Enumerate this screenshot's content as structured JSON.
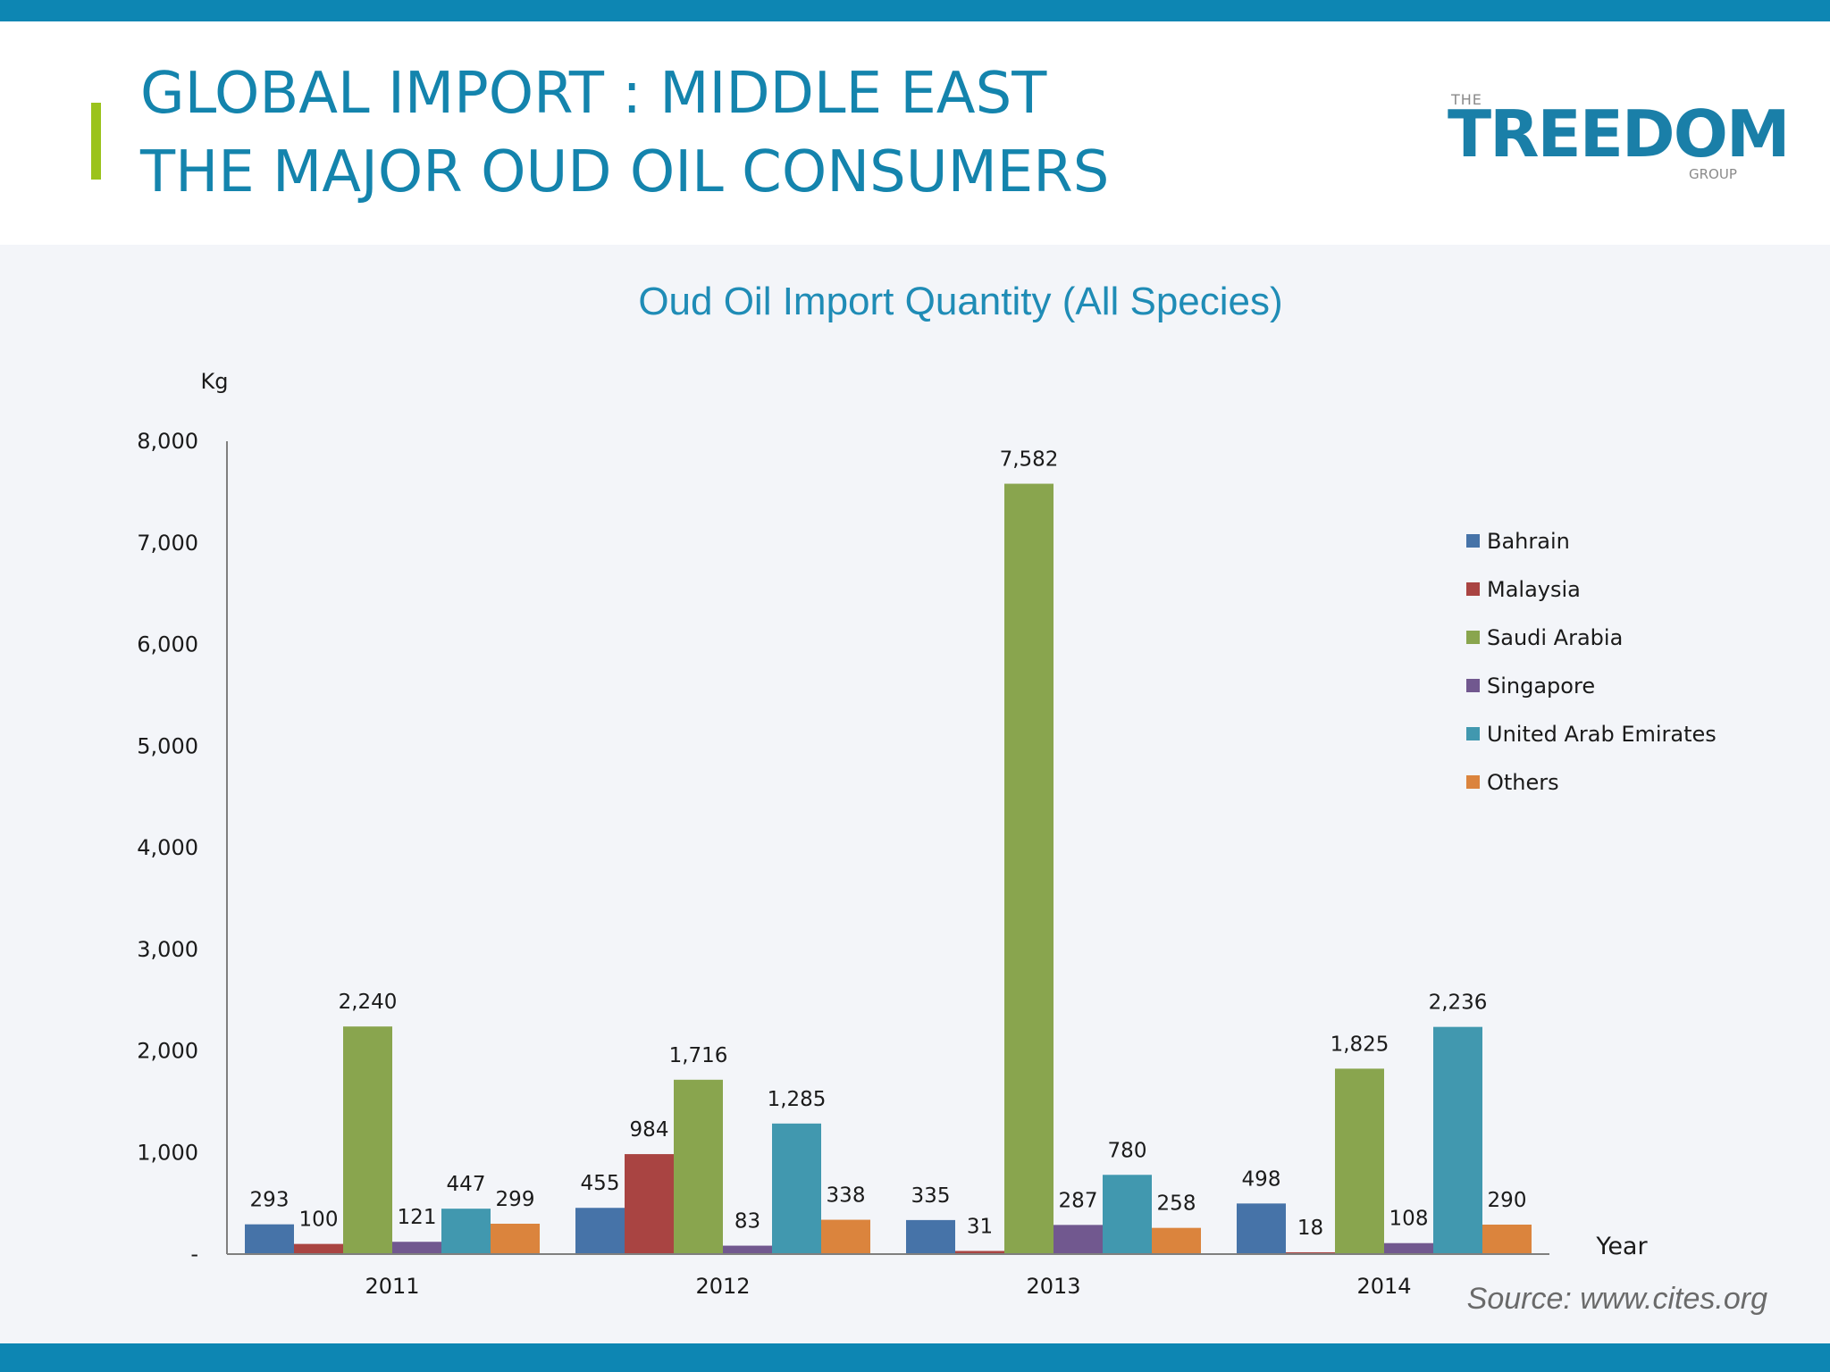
{
  "header": {
    "title_line1": "GLOBAL IMPORT : MIDDLE EAST",
    "title_line2": "THE MAJOR OUD OIL CONSUMERS",
    "logo": {
      "the": "THE",
      "word": "TREEDOM",
      "group": "GROUP"
    }
  },
  "colors": {
    "accent_bar": "#9bc31c",
    "brand_blue": "#0d86b3",
    "series": [
      "#4673a8",
      "#a94442",
      "#89a54e",
      "#71588f",
      "#4198af",
      "#db843d"
    ]
  },
  "chart_data": {
    "type": "bar",
    "title": "Oud Oil Import Quantity (All Species)",
    "ylabel": "Kg",
    "xlabel": "Year",
    "ylim": [
      0,
      8000
    ],
    "yticks": [
      0,
      1000,
      2000,
      3000,
      4000,
      5000,
      6000,
      7000,
      8000
    ],
    "ytick_labels": [
      "-",
      "1,000",
      "2,000",
      "3,000",
      "4,000",
      "5,000",
      "6,000",
      "7,000",
      "8,000"
    ],
    "categories": [
      "2011",
      "2012",
      "2013",
      "2014"
    ],
    "series": [
      {
        "name": "Bahrain",
        "values": [
          293,
          455,
          335,
          498
        ],
        "labels": [
          "293",
          "455",
          "335",
          "498"
        ]
      },
      {
        "name": "Malaysia",
        "values": [
          100,
          984,
          31,
          18
        ],
        "labels": [
          "100",
          "984",
          "31",
          "18"
        ]
      },
      {
        "name": "Saudi Arabia",
        "values": [
          2240,
          1716,
          7582,
          1825
        ],
        "labels": [
          "2,240",
          "1,716",
          "7,582",
          "1,825"
        ]
      },
      {
        "name": "Singapore",
        "values": [
          121,
          83,
          287,
          108
        ],
        "labels": [
          "121",
          "83",
          "287",
          "108"
        ]
      },
      {
        "name": "United Arab Emirates",
        "values": [
          447,
          1285,
          780,
          2236
        ],
        "labels": [
          "447",
          "1,285",
          "780",
          "2,236"
        ]
      },
      {
        "name": "Others",
        "values": [
          299,
          338,
          258,
          290
        ],
        "labels": [
          "299",
          "338",
          "258",
          "290"
        ]
      }
    ],
    "legend_position": "right",
    "grid": false,
    "source": "Source: www.cites.org"
  }
}
